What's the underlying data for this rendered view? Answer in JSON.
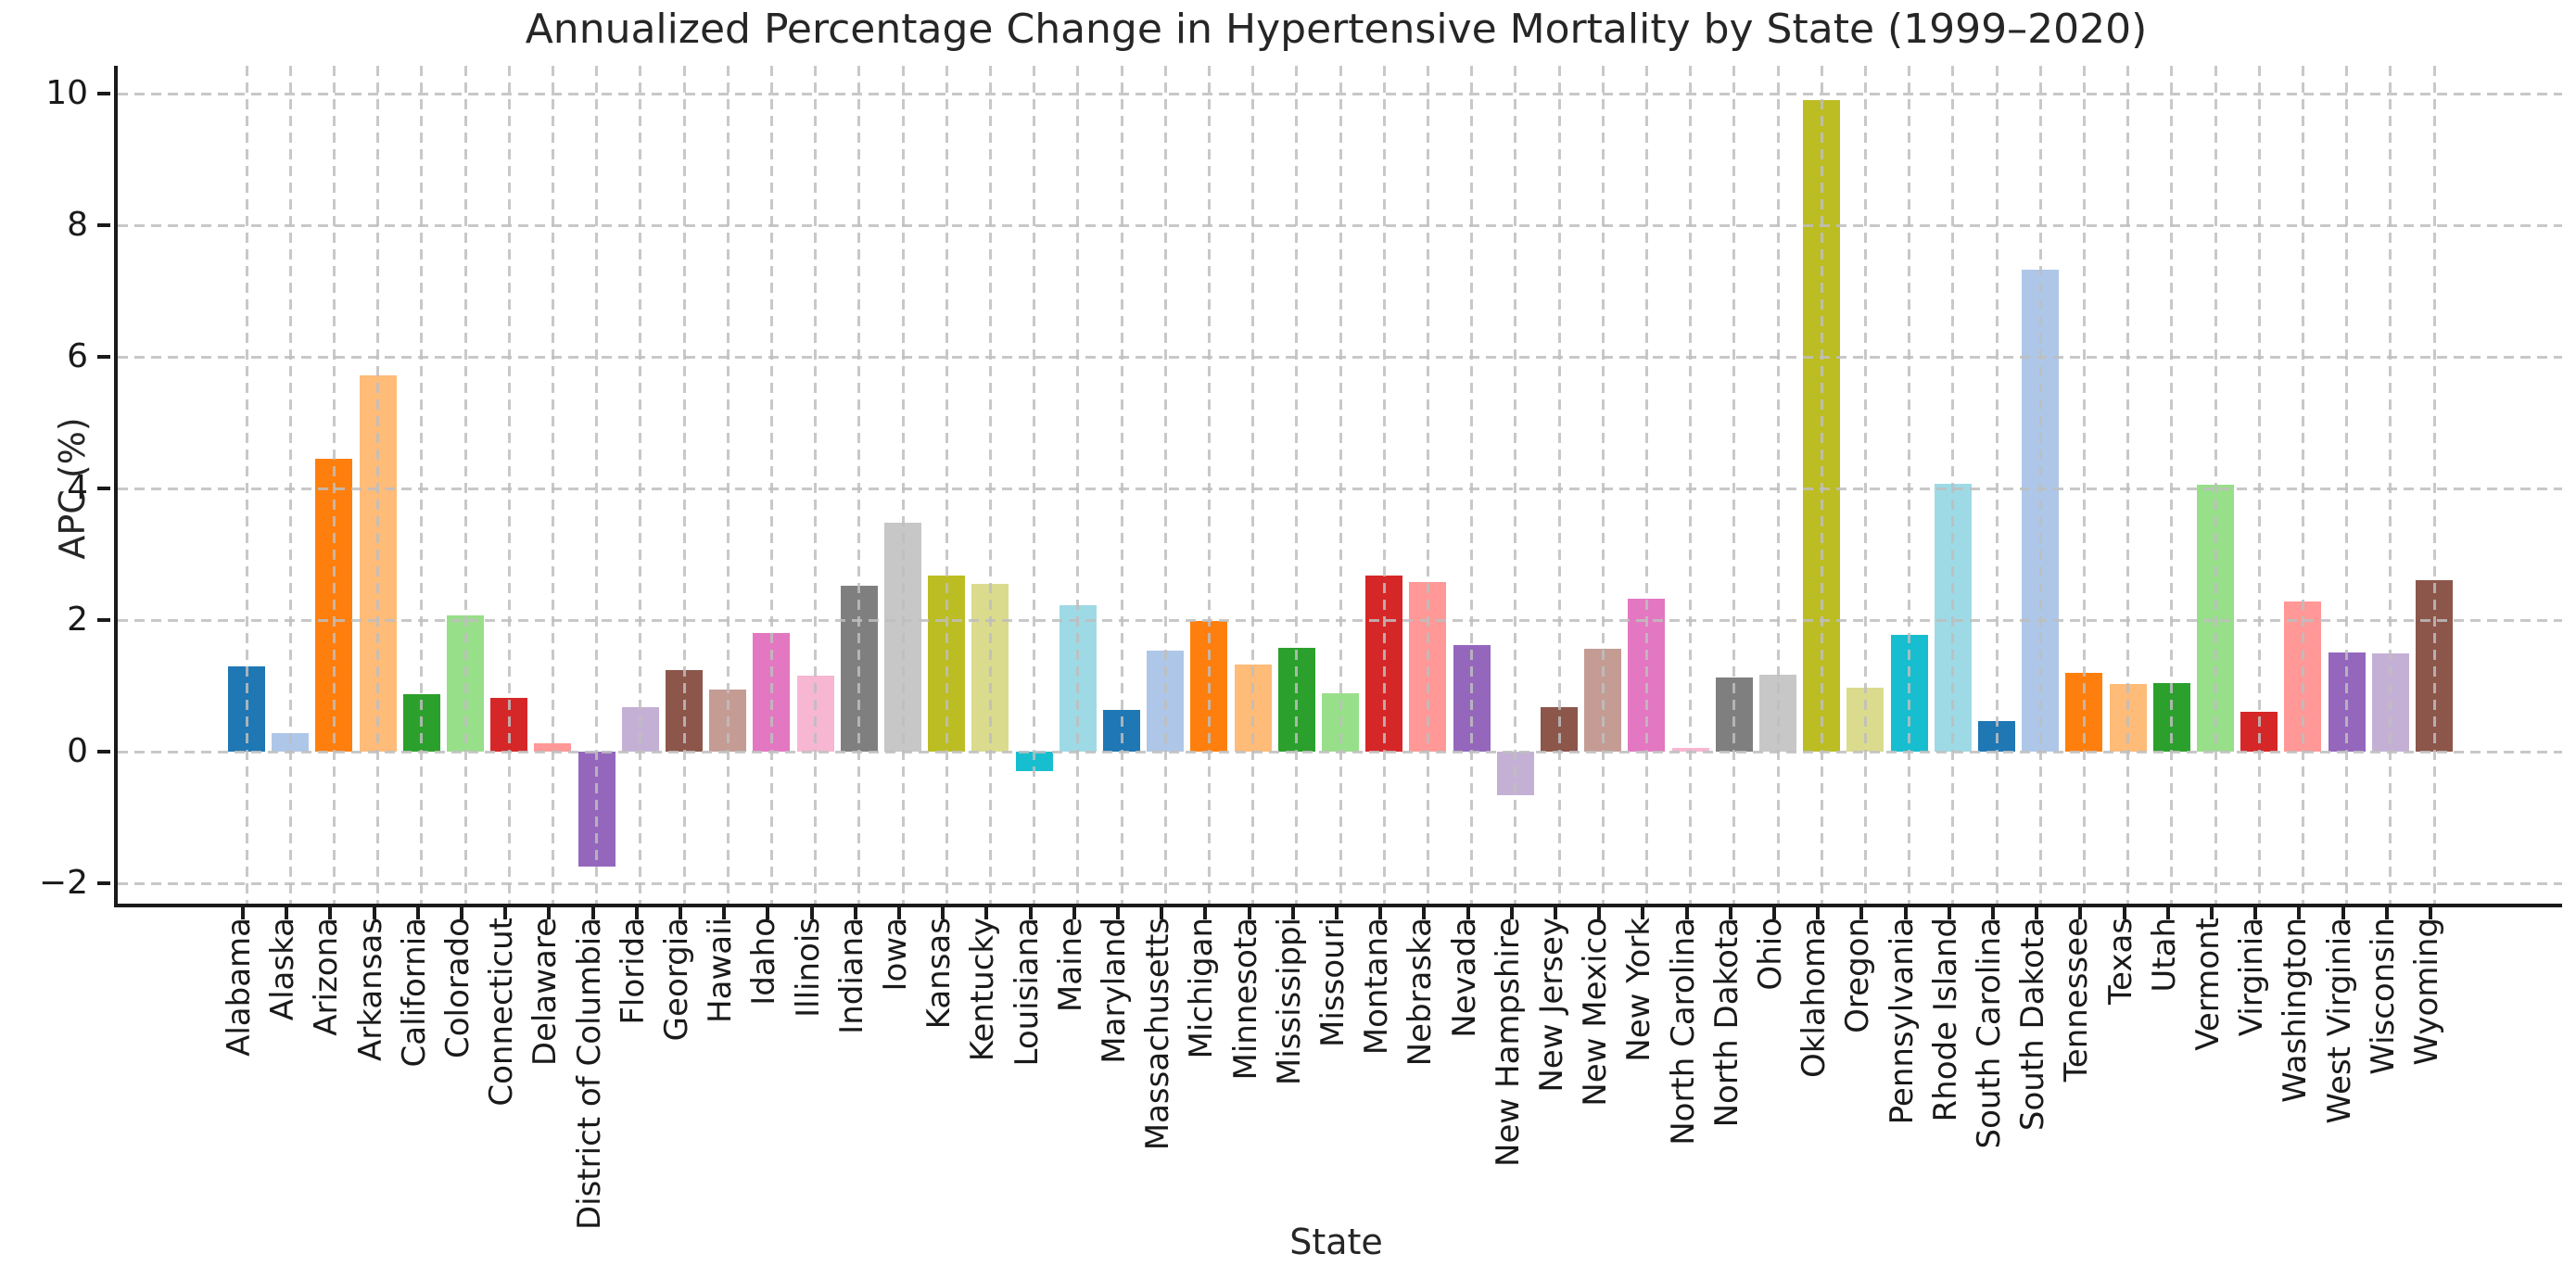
{
  "chart_data": {
    "type": "bar",
    "title": "Annualized Percentage Change in Hypertensive Mortality by State (1999–2020)",
    "xlabel": "State",
    "ylabel": "APC (%)",
    "categories": [
      "Alabama",
      "Alaska",
      "Arizona",
      "Arkansas",
      "California",
      "Colorado",
      "Connecticut",
      "Delaware",
      "District of Columbia",
      "Florida",
      "Georgia",
      "Hawaii",
      "Idaho",
      "Illinois",
      "Indiana",
      "Iowa",
      "Kansas",
      "Kentucky",
      "Louisiana",
      "Maine",
      "Maryland",
      "Massachusetts",
      "Michigan",
      "Minnesota",
      "Mississippi",
      "Missouri",
      "Montana",
      "Nebraska",
      "Nevada",
      "New Hampshire",
      "New Jersey",
      "New Mexico",
      "New York",
      "North Carolina",
      "North Dakota",
      "Ohio",
      "Oklahoma",
      "Oregon",
      "Pennsylvania",
      "Rhode Island",
      "South Carolina",
      "South Dakota",
      "Tennessee",
      "Texas",
      "Utah",
      "Vermont",
      "Virginia",
      "Washington",
      "West Virginia",
      "Wisconsin",
      "Wyoming"
    ],
    "values": [
      1.3,
      0.28,
      4.45,
      5.72,
      0.88,
      2.07,
      0.82,
      0.13,
      -1.75,
      0.68,
      1.24,
      0.95,
      1.8,
      1.16,
      2.52,
      3.48,
      2.68,
      2.55,
      -0.3,
      2.23,
      0.63,
      1.54,
      1.98,
      1.33,
      1.58,
      0.89,
      2.68,
      2.58,
      1.62,
      -0.66,
      0.68,
      1.57,
      2.32,
      0.06,
      1.12,
      1.17,
      9.9,
      0.97,
      1.78,
      4.07,
      0.46,
      7.32,
      1.2,
      1.03,
      1.04,
      4.05,
      0.6,
      2.28,
      1.51,
      1.5,
      2.6
    ],
    "bar_palette": [
      "#1f77b4",
      "#aec7e8",
      "#ff7f0e",
      "#ffbb78",
      "#2ca02c",
      "#98df8a",
      "#d62728",
      "#ff9896",
      "#9467bd",
      "#c5b0d5",
      "#8c564b",
      "#c49c94",
      "#e377c2",
      "#f7b6d2",
      "#7f7f7f",
      "#c7c7c7",
      "#bcbd22",
      "#dbdb8d",
      "#17becf",
      "#9edae5"
    ],
    "palette_note": "tab20 colors cycling through the 51 bars in order",
    "yticks": [
      -2,
      0,
      2,
      4,
      6,
      8,
      10
    ],
    "ylim": [
      -2.31,
      10.42
    ],
    "grid": "dashed light-gray gridlines at every y tick and every state tick, drawn above bars",
    "legend": "none",
    "text_color": "#262626",
    "axis_color": "#1a1a1a",
    "grid_color": "#bebebe",
    "background": "#ffffff"
  }
}
